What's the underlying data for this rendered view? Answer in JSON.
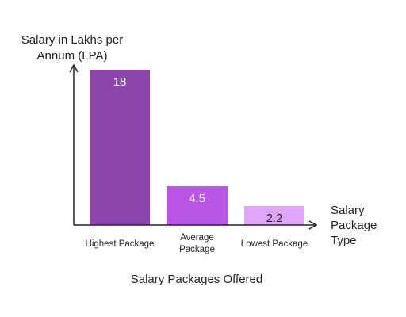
{
  "chart_data": {
    "type": "bar",
    "title": "Salary Packages Offered",
    "ylabel": "Salary in Lakhs per Annum (LPA)",
    "ylabel_lines": [
      "Salary in Lakhs per",
      "Annum (LPA)"
    ],
    "xlabel": "Salary Package Type",
    "xlabel_lines": [
      "Salary",
      "Package",
      "Type"
    ],
    "categories": [
      "Highest Package",
      "Average Package",
      "Lowest Package"
    ],
    "category_lines": [
      [
        "Highest Package"
      ],
      [
        "Average",
        "Package"
      ],
      [
        "Lowest Package"
      ]
    ],
    "values": [
      18,
      4.5,
      2.2
    ],
    "value_labels": [
      "18",
      "4.5",
      "2.2"
    ],
    "ylim": [
      0,
      18
    ],
    "grid": false,
    "legend": "none",
    "bar_colors": [
      "#8e44ad",
      "#bb55e8",
      "#dfa3f7"
    ],
    "value_label_colors": [
      "#ffffff",
      "#ffffff",
      "#222222"
    ],
    "axis_color": "#222222"
  }
}
